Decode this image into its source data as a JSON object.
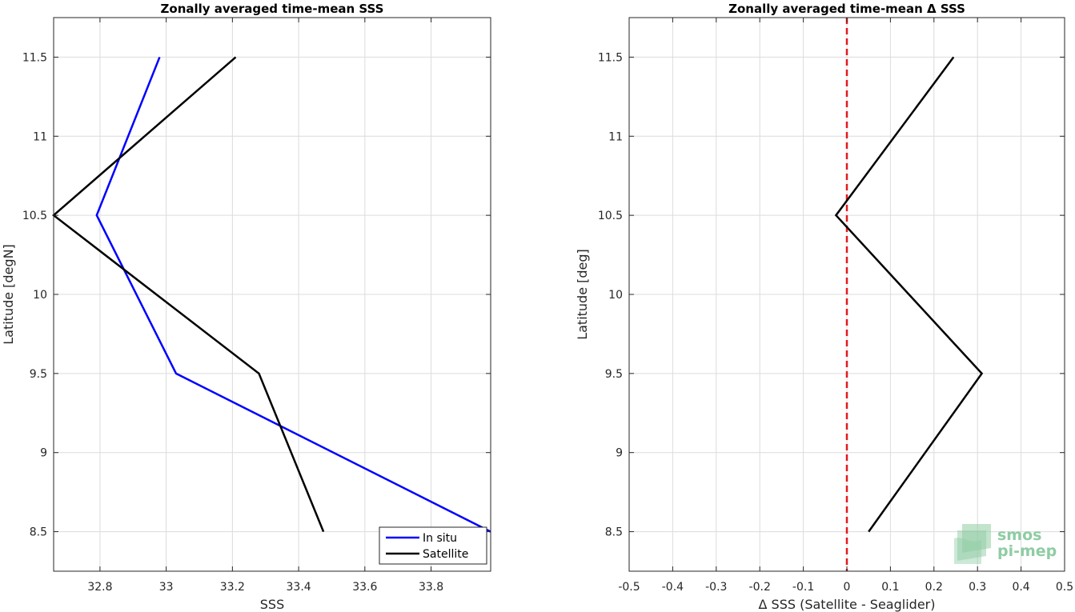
{
  "chart_data": [
    {
      "type": "line",
      "title": "Zonally averaged time-mean SSS",
      "xlabel": "SSS",
      "ylabel": "Latitude [degN]",
      "xlim": [
        32.66,
        33.98
      ],
      "ylim": [
        8.25,
        11.75
      ],
      "xticks": [
        32.8,
        33,
        33.2,
        33.4,
        33.6,
        33.8
      ],
      "xtick_labels": [
        "32.8",
        "33",
        "33.2",
        "33.4",
        "33.6",
        "33.8"
      ],
      "yticks": [
        8.5,
        9,
        9.5,
        10,
        10.5,
        11,
        11.5
      ],
      "ytick_labels": [
        "8.5",
        "9",
        "9.5",
        "10",
        "10.5",
        "11",
        "11.5"
      ],
      "grid": true,
      "legend": "bottom-right",
      "series": [
        {
          "name": "In situ",
          "color": "#0000ff",
          "x": [
            33.98,
            33.03,
            32.79,
            32.98
          ],
          "y": [
            8.5,
            9.5,
            10.5,
            11.5
          ]
        },
        {
          "name": "Satellite",
          "color": "#000000",
          "x": [
            33.475,
            33.28,
            32.66,
            33.21
          ],
          "y": [
            8.5,
            9.5,
            10.5,
            11.5
          ]
        }
      ]
    },
    {
      "type": "line",
      "title": "Zonally averaged time-mean Δ SSS",
      "xlabel": "Δ SSS (Satellite - Seaglider)",
      "ylabel": "Latitude [deg]",
      "xlim": [
        -0.5,
        0.5
      ],
      "ylim": [
        8.25,
        11.75
      ],
      "xticks": [
        -0.5,
        -0.4,
        -0.3,
        -0.2,
        -0.1,
        0,
        0.1,
        0.2,
        0.3,
        0.4,
        0.5
      ],
      "xtick_labels": [
        "-0.5",
        "-0.4",
        "-0.3",
        "-0.2",
        "-0.1",
        "0",
        "0.1",
        "0.2",
        "0.3",
        "0.4",
        "0.5"
      ],
      "yticks": [
        8.5,
        9,
        9.5,
        10,
        10.5,
        11,
        11.5
      ],
      "ytick_labels": [
        "8.5",
        "9",
        "9.5",
        "10",
        "10.5",
        "11",
        "11.5"
      ],
      "grid": true,
      "reference_line": {
        "x": 0,
        "color": "#e41a1c",
        "style": "dashed"
      },
      "series": [
        {
          "color": "#000000",
          "x": [
            0.05,
            0.31,
            -0.025,
            0.245
          ],
          "y": [
            8.5,
            9.5,
            10.5,
            11.5
          ]
        }
      ]
    }
  ],
  "logo": {
    "line1": "smos",
    "line2": "pi-mep",
    "color": "#8fcca3"
  }
}
